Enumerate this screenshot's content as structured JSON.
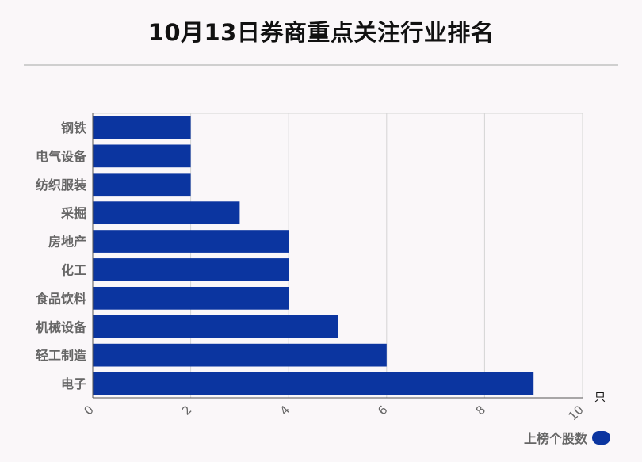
{
  "chart_data": {
    "type": "bar",
    "orientation": "horizontal",
    "title": "10月13日券商重点关注行业排名",
    "categories": [
      "钢铁",
      "电气设备",
      "纺织服装",
      "采掘",
      "房地产",
      "化工",
      "食品饮料",
      "机械设备",
      "轻工制造",
      "电子"
    ],
    "series": [
      {
        "name": "上榜个股数",
        "values": [
          2,
          2,
          2,
          3,
          4,
          4,
          4,
          5,
          6,
          9
        ]
      }
    ],
    "xlim": [
      0,
      10
    ],
    "xticks": [
      0,
      2,
      4,
      6,
      8,
      10
    ],
    "x_unit": "只",
    "grid": true,
    "legend_position": "bottom-right",
    "bar_color": "#0b35a0"
  }
}
